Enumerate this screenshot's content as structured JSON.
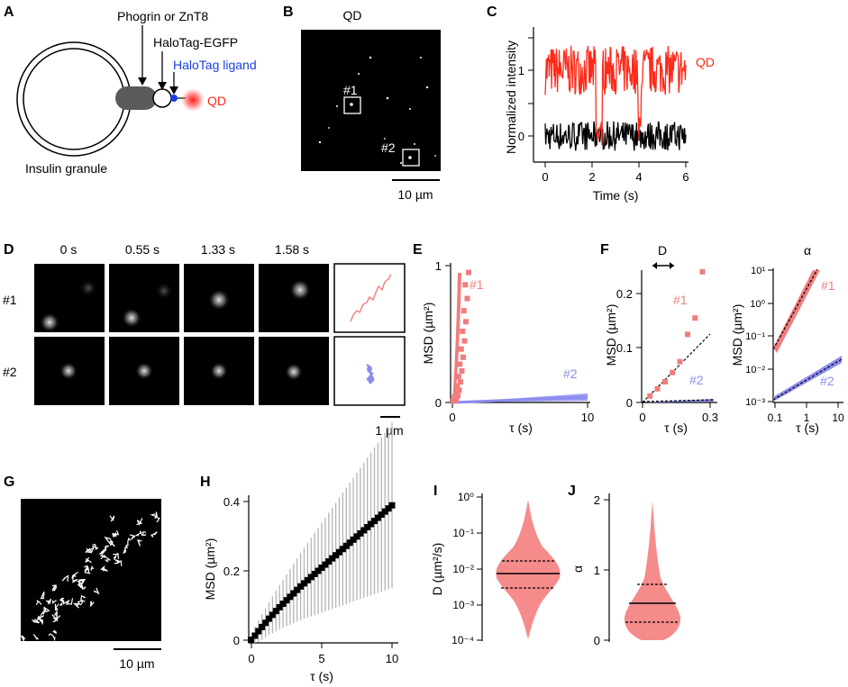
{
  "panels": {
    "A": {
      "label": "A",
      "protein": "Phogrin or ZnT8",
      "tag": "HaloTag-EGFP",
      "ligand": "HaloTag ligand",
      "qd": "QD",
      "granule": "Insulin granule"
    },
    "B": {
      "label": "B",
      "title": "QD",
      "roi1": "#1",
      "roi2": "#2",
      "scalebar": "10 µm"
    },
    "C": {
      "label": "C",
      "ylabel": "Normalized intensity",
      "xlabel": "Time (s)",
      "xticks": [
        "0",
        "2",
        "4",
        "6"
      ],
      "yticks": [
        "0",
        "1"
      ],
      "legend": "QD"
    },
    "D": {
      "label": "D",
      "times": [
        "0 s",
        "0.55 s",
        "1.33 s",
        "1.58 s"
      ],
      "rows": [
        "#1",
        "#2"
      ],
      "scalebar": "1 µm"
    },
    "E": {
      "label": "E",
      "ylabel": "MSD (µm²)",
      "xlabel": "τ (s)",
      "xticks": [
        "0",
        "10"
      ],
      "yticks": [
        "0",
        "1"
      ],
      "s1": "#1",
      "s2": "#2"
    },
    "F": {
      "label": "F",
      "d_label": "D",
      "alpha_label": "α",
      "ylabel": "MSD (µm²)",
      "xlabel": "τ (s)",
      "lin_xticks": [
        "0",
        "0.3"
      ],
      "lin_yticks": [
        "0",
        "0.1",
        "0.2"
      ],
      "log_xticks": [
        "0.1",
        "1",
        "10"
      ],
      "log_yticks": [
        "10⁻³",
        "10⁻²",
        "10⁻¹",
        "10⁰",
        "10¹"
      ],
      "s1": "#1",
      "s2": "#2"
    },
    "G": {
      "label": "G",
      "scalebar": "10 µm"
    },
    "H": {
      "label": "H",
      "ylabel": "MSD (µm²)",
      "xlabel": "τ (s)",
      "xticks": [
        "0",
        "5",
        "10"
      ],
      "yticks": [
        "0",
        "0.2",
        "0.4"
      ]
    },
    "I": {
      "label": "I",
      "ylabel": "D (µm²/s)",
      "yticks": [
        "10⁰",
        "10⁻¹",
        "10⁻²",
        "10⁻³",
        "10⁻⁴"
      ]
    },
    "J": {
      "label": "J",
      "ylabel": "α",
      "yticks": [
        "0",
        "1",
        "2"
      ]
    }
  },
  "colors": {
    "qd_red": "#ff2a1a",
    "trace_black": "#000000",
    "s1": "#f07d7d",
    "s2": "#8c8cf0",
    "ligand_blue": "#1a3fe0",
    "violin": "#f58b8b",
    "errbar": "#b4b4b4"
  },
  "chart_data": [
    {
      "panel": "C",
      "type": "line",
      "xlabel": "Time (s)",
      "ylabel": "Normalized intensity",
      "xlim": [
        0,
        6
      ],
      "ylim": [
        -0.3,
        1.5
      ],
      "series": [
        {
          "name": "QD",
          "color": "red",
          "description": "blinking trace fluctuating ~1, drops near 2.2 s and 4 s"
        },
        {
          "name": "background",
          "color": "black",
          "description": "noise around 0"
        }
      ]
    },
    {
      "panel": "E",
      "type": "scatter",
      "xlabel": "τ (s)",
      "ylabel": "MSD (µm²)",
      "xlim": [
        0,
        10
      ],
      "ylim": [
        0,
        1
      ],
      "series": [
        {
          "name": "#1",
          "x": [
            0.05,
            0.1,
            0.15,
            0.2,
            0.25,
            0.3,
            0.35,
            0.4,
            0.45,
            0.5,
            0.55,
            0.6,
            0.65,
            0.7,
            0.75,
            0.8,
            0.85,
            0.9,
            0.95,
            1.0
          ],
          "y": [
            0.01,
            0.02,
            0.04,
            0.05,
            0.07,
            0.09,
            0.12,
            0.15,
            0.19,
            0.23,
            0.28,
            0.33,
            0.39,
            0.45,
            0.52,
            0.59,
            0.67,
            0.76,
            0.86,
            0.95
          ]
        },
        {
          "name": "#2",
          "x": [
            0,
            10
          ],
          "y": [
            0.0,
            0.06
          ]
        }
      ]
    },
    {
      "panel": "F-linear",
      "type": "scatter",
      "xlabel": "τ (s)",
      "ylabel": "MSD (µm²)",
      "xlim": [
        0,
        0.3
      ],
      "ylim": [
        0,
        0.25
      ],
      "series": [
        {
          "name": "#1",
          "x": [
            0.033,
            0.066,
            0.1,
            0.133,
            0.166,
            0.2,
            0.233,
            0.266
          ],
          "y": [
            0.012,
            0.025,
            0.038,
            0.055,
            0.075,
            0.125,
            0.155,
            0.24
          ]
        },
        {
          "name": "#2",
          "x": [
            0.033,
            0.066,
            0.1,
            0.133,
            0.166,
            0.2,
            0.233,
            0.266
          ],
          "y": [
            0.002,
            0.003,
            0.003,
            0.004,
            0.004,
            0.005,
            0.005,
            0.006
          ]
        }
      ]
    },
    {
      "panel": "F-log",
      "type": "scatter",
      "xlabel": "τ (s)",
      "ylabel": "MSD (µm²)",
      "xscale": "log",
      "yscale": "log",
      "xlim": [
        0.1,
        10
      ],
      "ylim": [
        0.001,
        10
      ],
      "series": [
        {
          "name": "#1",
          "x_range": [
            0.1,
            2.2
          ],
          "y_range": [
            0.04,
            10
          ]
        },
        {
          "name": "#2",
          "x_range": [
            0.1,
            10
          ],
          "y_range": [
            0.0015,
            0.05
          ]
        }
      ]
    },
    {
      "panel": "H",
      "type": "line",
      "xlabel": "τ (s)",
      "ylabel": "MSD (µm²)",
      "xlim": [
        0,
        10
      ],
      "ylim": [
        0,
        0.4
      ],
      "x": [
        0.25,
        0.5,
        0.75,
        1.0,
        1.25,
        1.5,
        1.75,
        2.0,
        2.25,
        2.5,
        2.75,
        3.0,
        3.25,
        3.5,
        3.75,
        4.0,
        4.25,
        4.5,
        4.75,
        5.0,
        5.25,
        5.5,
        5.75,
        6.0,
        6.25,
        6.5,
        6.75,
        7.0,
        7.25,
        7.5,
        7.75,
        8.0,
        8.25,
        8.5,
        8.75,
        9.0,
        9.25,
        9.5,
        9.75,
        10.0
      ],
      "y": [
        0.013,
        0.026,
        0.038,
        0.05,
        0.062,
        0.073,
        0.084,
        0.095,
        0.105,
        0.115,
        0.125,
        0.135,
        0.145,
        0.155,
        0.164,
        0.173,
        0.182,
        0.191,
        0.2,
        0.209,
        0.218,
        0.227,
        0.236,
        0.245,
        0.254,
        0.263,
        0.272,
        0.281,
        0.29,
        0.299,
        0.308,
        0.317,
        0.326,
        0.335,
        0.344,
        0.353,
        0.362,
        0.371,
        0.38,
        0.389
      ]
    },
    {
      "panel": "I",
      "type": "violin",
      "ylabel": "D (µm²/s)",
      "yscale": "log",
      "ylim": [
        0.0001,
        1
      ],
      "median": 0.008,
      "q1": 0.003,
      "q3": 0.02
    },
    {
      "panel": "J",
      "type": "violin",
      "ylabel": "α",
      "ylim": [
        0,
        2
      ],
      "median": 0.55,
      "q1": 0.25,
      "q3": 0.8
    }
  ]
}
